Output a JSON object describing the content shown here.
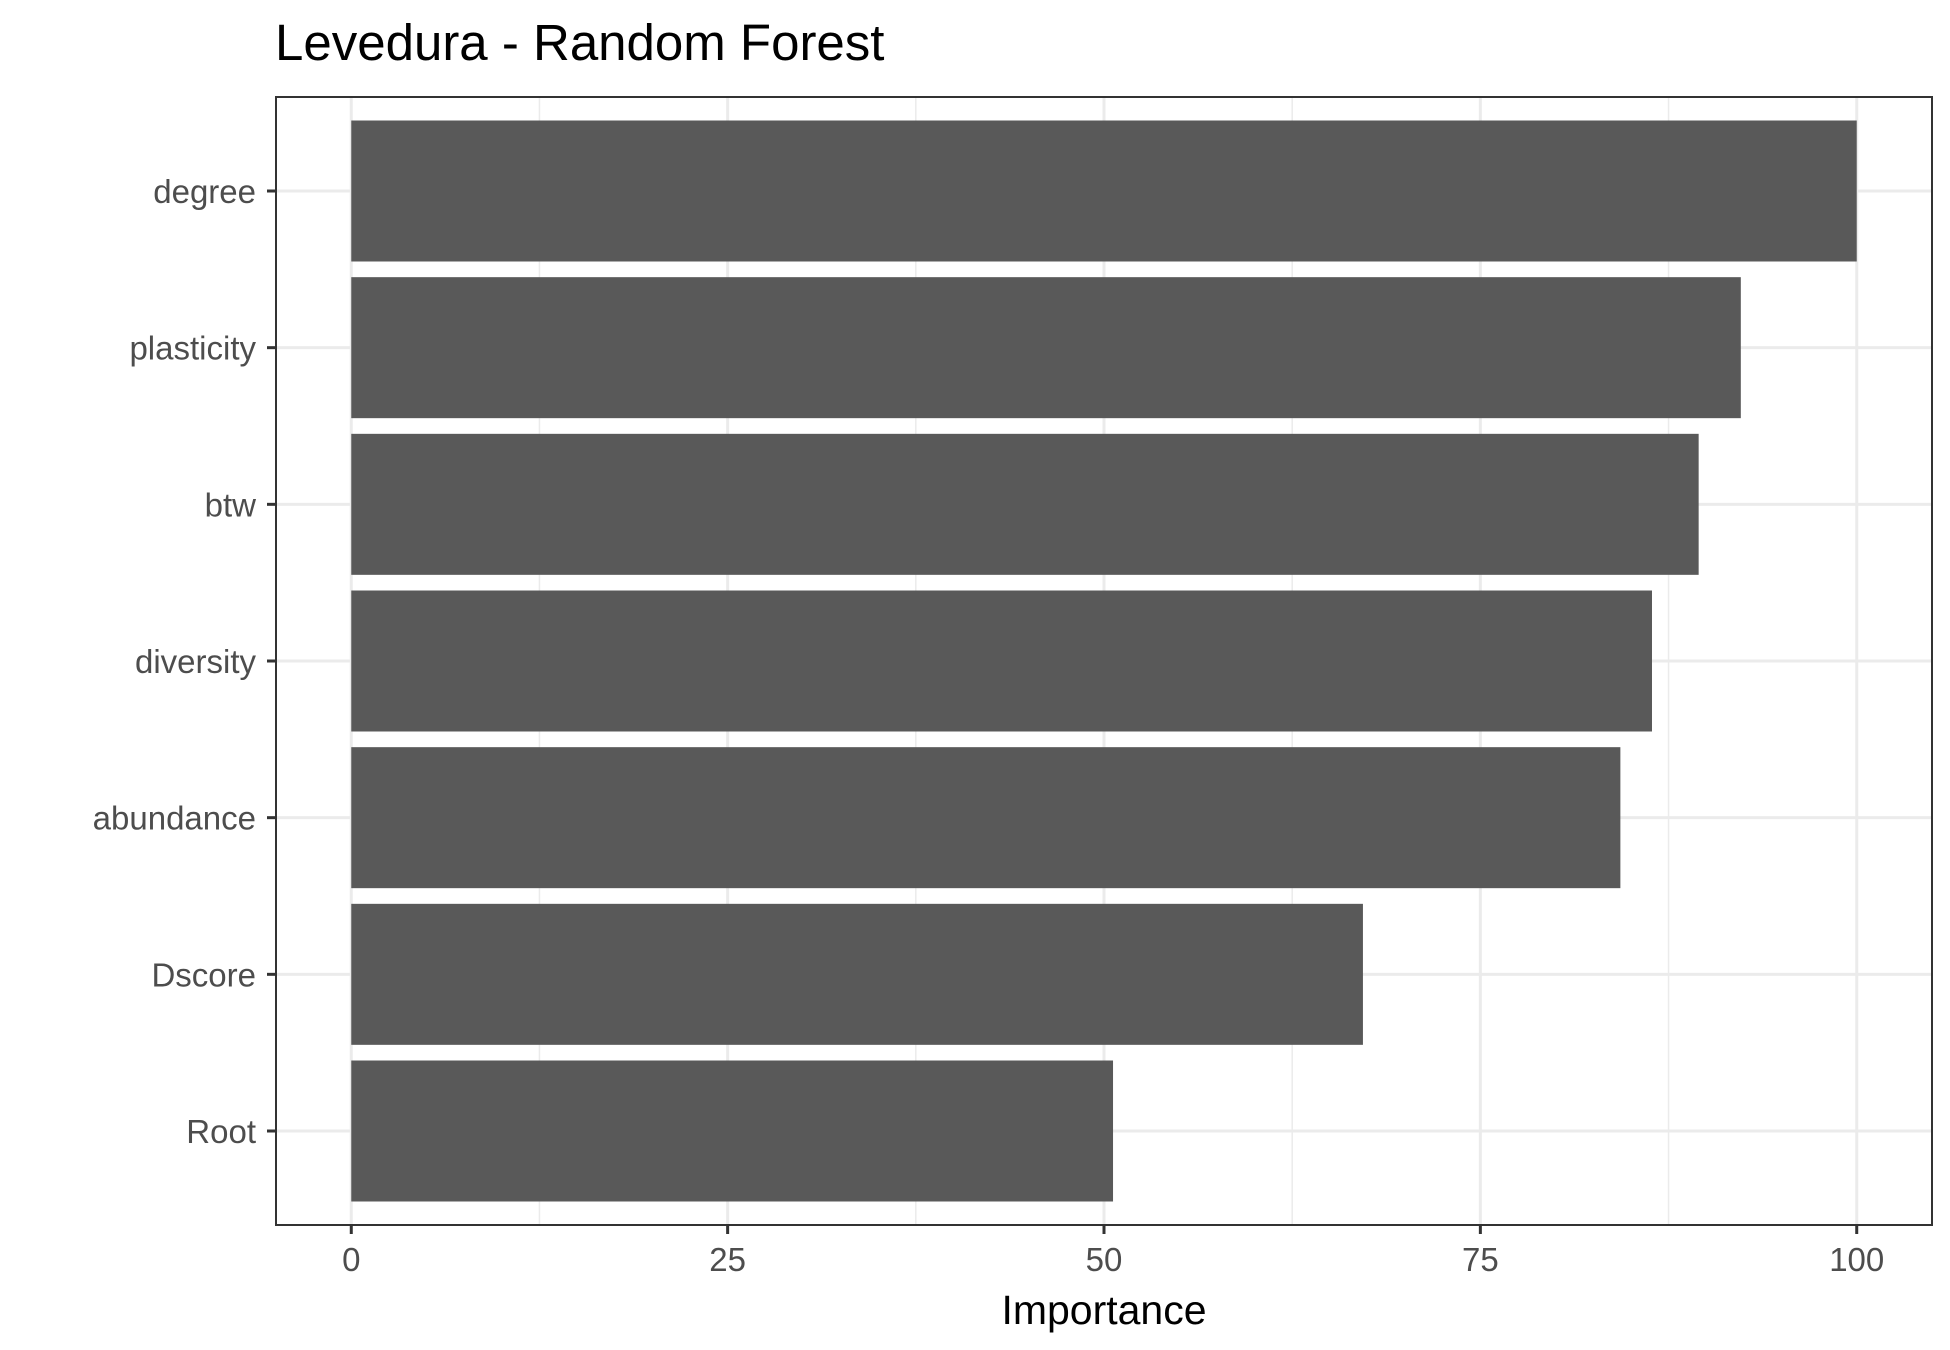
{
  "chart_data": {
    "type": "bar",
    "orientation": "horizontal",
    "title": "Levedura - Random Forest",
    "xlabel": "Importance",
    "ylabel": "",
    "categories": [
      "degree",
      "plasticity",
      "btw",
      "diversity",
      "abundance",
      "Dscore",
      "Root"
    ],
    "values": [
      100,
      92.3,
      89.5,
      86.4,
      84.3,
      67.2,
      50.6
    ],
    "xlim": [
      -5,
      105
    ],
    "x_ticks": [
      "0",
      "25",
      "50",
      "75",
      "100"
    ],
    "grid": true,
    "legend": "none",
    "bar_color": "#595959"
  }
}
